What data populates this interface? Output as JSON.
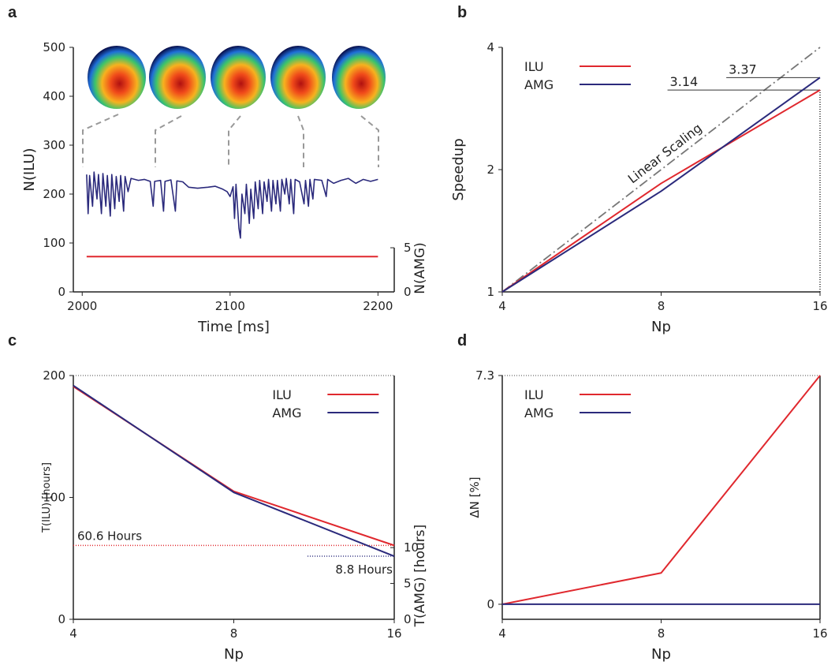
{
  "chart_data": [
    {
      "type": "line",
      "label": "a",
      "xlabel": "Time [ms]",
      "ylabel": "N(ILU)",
      "y2label": "N(AMG)",
      "xlim": [
        1994,
        2211
      ],
      "xticks": [
        2000,
        2100,
        2200
      ],
      "ylim": [
        0,
        500
      ],
      "yticks": [
        0,
        100,
        200,
        300,
        400,
        500
      ],
      "y2lim": [
        0,
        27.7
      ],
      "y2ticks": [
        0,
        5
      ],
      "series": [
        {
          "color": "#2b2a7c",
          "x": [
            2003,
            2004,
            2005,
            2007,
            2008,
            2010,
            2011,
            2013,
            2014,
            2016,
            2017,
            2019,
            2020,
            2022,
            2023,
            2025,
            2026,
            2028,
            2029,
            2031,
            2033,
            2038,
            2042,
            2046,
            2048,
            2049,
            2053,
            2055,
            2056,
            2060,
            2063,
            2064,
            2068,
            2072,
            2078,
            2085,
            2090,
            2095,
            2098,
            2100,
            2102,
            2103,
            2104,
            2106,
            2107,
            2108,
            2110,
            2111,
            2113,
            2114,
            2116,
            2117,
            2119,
            2120,
            2122,
            2123,
            2125,
            2126,
            2128,
            2129,
            2131,
            2132,
            2134,
            2135,
            2137,
            2138,
            2140,
            2141,
            2143,
            2144,
            2147,
            2150,
            2151,
            2153,
            2154,
            2156,
            2157,
            2162,
            2165,
            2166,
            2170,
            2175,
            2180,
            2185,
            2190,
            2195,
            2200
          ],
          "values": [
            240,
            160,
            238,
            175,
            245,
            190,
            240,
            160,
            242,
            175,
            238,
            155,
            240,
            170,
            236,
            185,
            238,
            165,
            236,
            205,
            232,
            228,
            230,
            226,
            175,
            226,
            228,
            165,
            226,
            229,
            165,
            227,
            225,
            214,
            212,
            214,
            216,
            210,
            205,
            195,
            215,
            150,
            220,
            130,
            110,
            200,
            160,
            220,
            140,
            210,
            150,
            225,
            170,
            228,
            160,
            225,
            185,
            230,
            165,
            228,
            180,
            228,
            165,
            230,
            200,
            232,
            180,
            230,
            160,
            230,
            225,
            180,
            228,
            175,
            230,
            190,
            230,
            228,
            195,
            230,
            222,
            228,
            232,
            222,
            230,
            226,
            230
          ]
        },
        {
          "color": "#e0282e",
          "axis": "y2",
          "x": [
            2003,
            2200
          ],
          "values": [
            4,
            4
          ]
        }
      ]
    },
    {
      "type": "line",
      "label": "b",
      "xlabel": "Np",
      "ylabel": "Speedup",
      "log_x": true,
      "log_y": true,
      "legend": "upper left",
      "x": [
        4,
        8,
        16
      ],
      "xlim": [
        4,
        16
      ],
      "xticks": [
        4,
        8,
        16
      ],
      "ylim": [
        1,
        4
      ],
      "yticks": [
        1,
        2,
        4
      ],
      "series": [
        {
          "name": "ILU",
          "color": "#e0282e",
          "values": [
            1,
            1.85,
            3.14
          ]
        },
        {
          "name": "AMG",
          "color": "#2b2a7c",
          "values": [
            1,
            1.77,
            3.37
          ]
        }
      ],
      "reference": {
        "label": "Linear Scaling",
        "color": "#777777",
        "values": [
          1,
          2,
          4
        ]
      },
      "annotations": [
        {
          "label": "3.14",
          "y": 3.14
        },
        {
          "label": "3.37",
          "y": 3.37
        }
      ]
    },
    {
      "type": "line",
      "label": "c",
      "xlabel": "Np",
      "ylabel": "T(ILU) [hours]",
      "y2label": "T(AMG) [hours]",
      "log_x": true,
      "legend": "upper right",
      "x": [
        4,
        8,
        16
      ],
      "xlim": [
        4,
        16
      ],
      "xticks": [
        4,
        8,
        16
      ],
      "ylim": [
        0,
        200
      ],
      "yticks": [
        0,
        100,
        200
      ],
      "y2lim": [
        0,
        34
      ],
      "y2ticks": [
        0,
        5,
        10
      ],
      "series": [
        {
          "name": "ILU",
          "color": "#e0282e",
          "values": [
            191,
            105,
            60.6
          ]
        },
        {
          "name": "AMG",
          "color": "#2b2a7c",
          "axis": "y2",
          "values": [
            32.6,
            17.7,
            8.8
          ]
        }
      ],
      "annotations": [
        {
          "label": "60.6 Hours",
          "y": 60.6,
          "color": "#e0282e"
        },
        {
          "label": "8.8 Hours",
          "y": 8.8,
          "axis": "y2",
          "color": "#2b2a7c"
        }
      ]
    },
    {
      "type": "line",
      "label": "d",
      "xlabel": "Np",
      "ylabel": "ΔN [%]",
      "log_x": true,
      "legend": "upper left",
      "x": [
        4,
        8,
        16
      ],
      "xlim": [
        4,
        16
      ],
      "xticks": [
        4,
        8,
        16
      ],
      "ylim": [
        -0.48,
        7.3
      ],
      "yticks": [
        0,
        7.3
      ],
      "series": [
        {
          "name": "ILU",
          "color": "#e0282e",
          "values": [
            0,
            1.0,
            7.3
          ]
        },
        {
          "name": "AMG",
          "color": "#2b2a7c",
          "values": [
            0,
            0,
            0
          ]
        }
      ]
    }
  ]
}
